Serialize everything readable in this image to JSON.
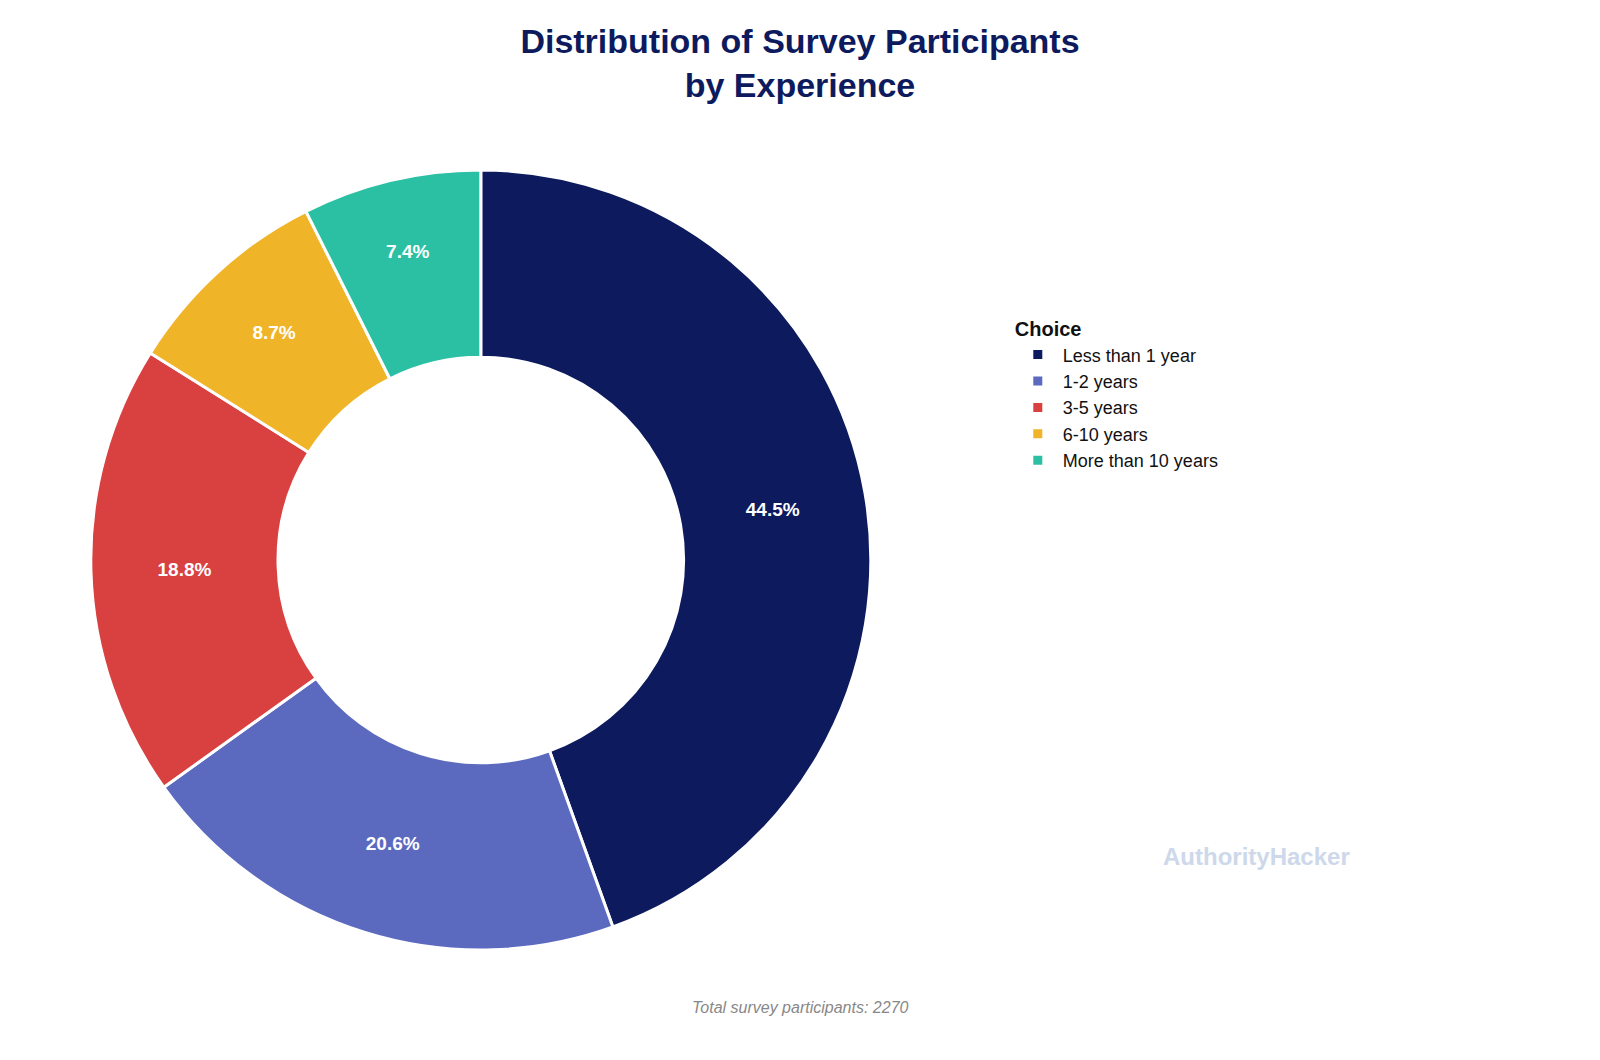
{
  "chart_data": {
    "type": "donut",
    "title": "Distribution of Survey Participants\nby Experience",
    "categories": [
      "Less than 1 year",
      "1-2 years",
      "3-5 years",
      "6-10 years",
      "More than 10 years"
    ],
    "values": [
      44.5,
      20.6,
      18.8,
      8.7,
      7.4
    ],
    "value_labels": [
      "44.5%",
      "20.6%",
      "18.8%",
      "8.7%",
      "7.4%"
    ],
    "data_labels": true,
    "colors": [
      "#0d1b5e",
      "#5b6abf",
      "#d94040",
      "#f0b429",
      "#2bbfa4"
    ],
    "legend": "right",
    "legend_title": "Choice",
    "footnote": "Total survey participants: 2270",
    "watermark": "AuthorityHacker"
  }
}
